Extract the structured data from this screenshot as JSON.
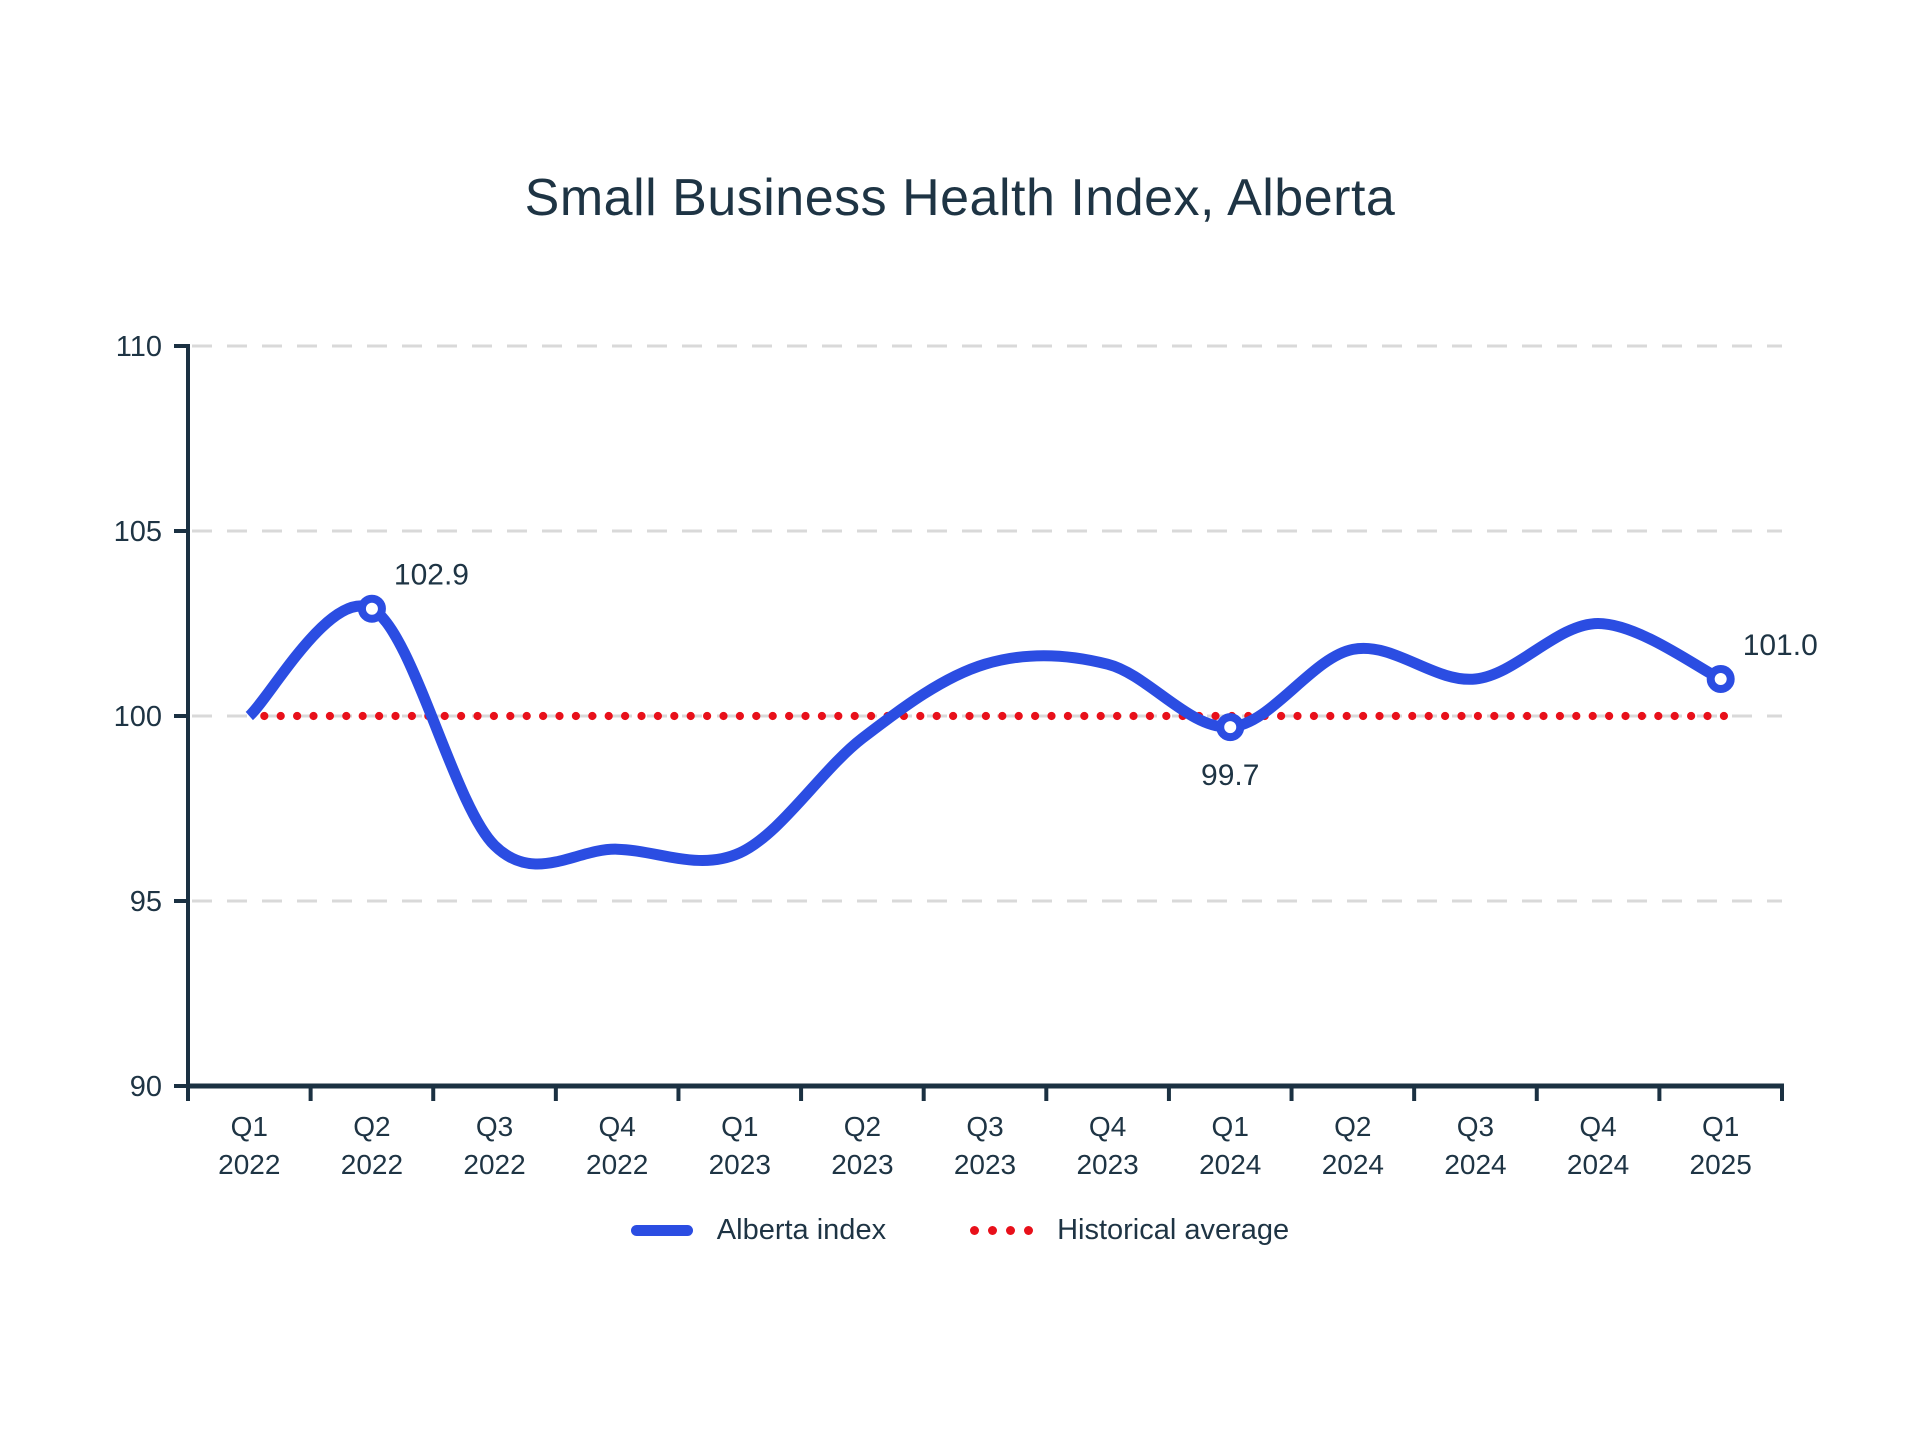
{
  "title": "Small Business Health Index, Alberta",
  "colors": {
    "line": "#2B4DE2",
    "average": "#E8101A",
    "text": "#1E3444",
    "axis": "#1B3142",
    "grid": "#D9D9D9",
    "marker_fill": "#FFFFFF"
  },
  "chart_data": {
    "type": "line",
    "title": "Small Business Health Index, Alberta",
    "xlabel": "",
    "ylabel": "",
    "categories": [
      "Q1 2022",
      "Q2 2022",
      "Q3 2022",
      "Q4 2022",
      "Q1 2023",
      "Q2 2023",
      "Q3 2023",
      "Q4 2023",
      "Q1 2024",
      "Q2 2024",
      "Q3 2024",
      "Q4 2024",
      "Q1 2025"
    ],
    "series": [
      {
        "name": "Alberta index",
        "type": "spline",
        "values": [
          100.0,
          102.9,
          96.5,
          96.4,
          96.3,
          99.4,
          101.4,
          101.4,
          99.7,
          101.8,
          101.0,
          102.5,
          101.0
        ]
      },
      {
        "name": "Historical average",
        "type": "reference-line",
        "value": 100.0,
        "style": "dotted"
      }
    ],
    "ylim": [
      90,
      110
    ],
    "yticks": [
      90,
      95,
      100,
      105,
      110
    ],
    "grid": "horizontal-dashed",
    "legend_position": "bottom-center",
    "marked_points": [
      1,
      8,
      12
    ],
    "annotations": [
      {
        "point_index": 1,
        "label": "102.9",
        "placement": "above-right"
      },
      {
        "point_index": 8,
        "label": "99.7",
        "placement": "below"
      },
      {
        "point_index": 12,
        "label": "101.0",
        "placement": "above-right"
      }
    ]
  },
  "legend": {
    "items": [
      {
        "label": "Alberta index",
        "swatch": "line"
      },
      {
        "label": "Historical average",
        "swatch": "dots"
      }
    ]
  }
}
